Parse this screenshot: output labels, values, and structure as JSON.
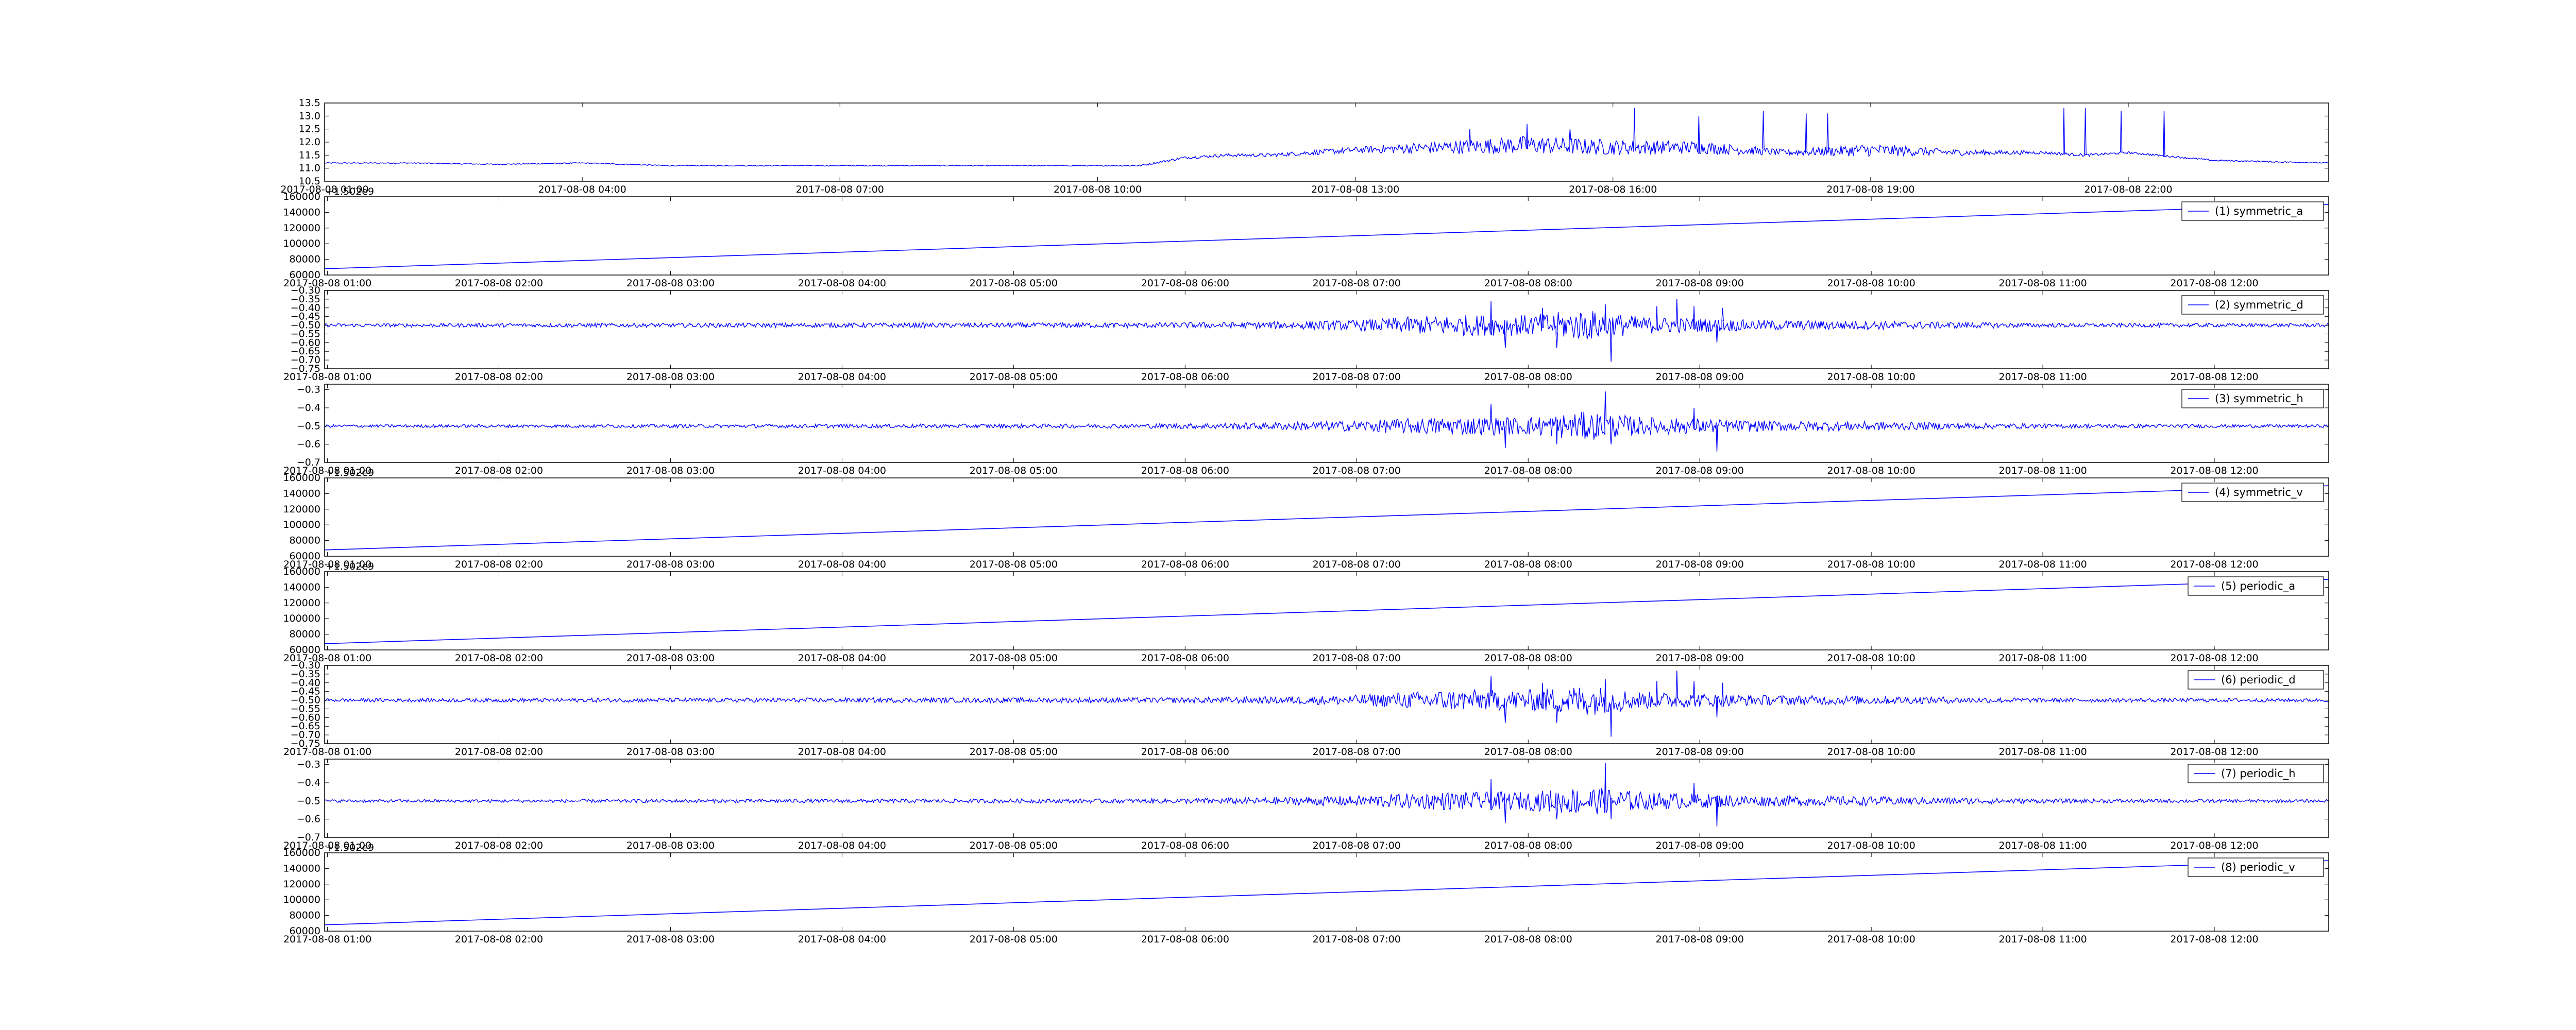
{
  "figure": {
    "background": "#ffffff",
    "line_color": "#0000ff"
  },
  "chart_data": [
    {
      "id": "raw",
      "type": "line",
      "legend": "",
      "offset_text": "",
      "yticks": [
        "10.5",
        "11.0",
        "11.5",
        "12.0",
        "12.5",
        "13.0",
        "13.5"
      ],
      "ylim": [
        10.5,
        13.5
      ],
      "xticks": [
        "2017-08-08 01:00",
        "2017-08-08 04:00",
        "2017-08-08 07:00",
        "2017-08-08 10:00",
        "2017-08-08 13:00",
        "2017-08-08 16:00",
        "2017-08-08 19:00",
        "2017-08-08 22:00"
      ],
      "xlim": [
        "2017-08-08 01:00",
        "2017-08-09 00:20"
      ],
      "series": [
        {
          "kind": "timeseries",
          "x": [
            "2017-08-08 01:00",
            "2017-08-08 02:00",
            "2017-08-08 03:00",
            "2017-08-08 04:00",
            "2017-08-08 05:00",
            "2017-08-08 06:00",
            "2017-08-08 07:00",
            "2017-08-08 08:00",
            "2017-08-08 09:00",
            "2017-08-08 10:00",
            "2017-08-08 10:30",
            "2017-08-08 11:00",
            "2017-08-08 11:30",
            "2017-08-08 12:00",
            "2017-08-08 13:00",
            "2017-08-08 14:00",
            "2017-08-08 15:00",
            "2017-08-08 16:00",
            "2017-08-08 17:00",
            "2017-08-08 18:00",
            "2017-08-08 19:00",
            "2017-08-08 20:00",
            "2017-08-08 21:00",
            "2017-08-08 21:30",
            "2017-08-08 22:00",
            "2017-08-08 23:00",
            "2017-08-09 00:20"
          ],
          "y": [
            11.2,
            11.2,
            11.15,
            11.2,
            11.1,
            11.1,
            11.1,
            11.1,
            11.1,
            11.1,
            11.1,
            11.4,
            11.5,
            11.5,
            11.7,
            11.8,
            11.9,
            11.8,
            11.8,
            11.6,
            11.7,
            11.6,
            11.6,
            11.5,
            11.6,
            11.3,
            11.2
          ],
          "noise_amp": [
            0.02,
            0.02,
            0.02,
            0.02,
            0.02,
            0.02,
            0.02,
            0.02,
            0.02,
            0.02,
            0.03,
            0.05,
            0.06,
            0.07,
            0.12,
            0.25,
            0.35,
            0.3,
            0.25,
            0.12,
            0.25,
            0.12,
            0.06,
            0.05,
            0.04,
            0.03,
            0.02
          ],
          "spikes": [
            [
              "2017-08-08 14:20",
              12.5
            ],
            [
              "2017-08-08 15:00",
              12.7
            ],
            [
              "2017-08-08 15:30",
              12.5
            ],
            [
              "2017-08-08 16:15",
              13.3
            ],
            [
              "2017-08-08 17:00",
              13.0
            ],
            [
              "2017-08-08 17:45",
              13.2
            ],
            [
              "2017-08-08 18:15",
              13.1
            ],
            [
              "2017-08-08 18:30",
              13.1
            ],
            [
              "2017-08-08 21:15",
              13.3
            ],
            [
              "2017-08-08 21:30",
              13.3
            ],
            [
              "2017-08-08 21:55",
              13.2
            ],
            [
              "2017-08-08 22:25",
              13.2
            ]
          ]
        }
      ]
    },
    {
      "id": "symmetric_a",
      "type": "line",
      "legend": "(1) symmetric_a",
      "offset_text": "+1.502e9",
      "yticks": [
        "60000",
        "80000",
        "100000",
        "120000",
        "140000",
        "160000"
      ],
      "ylim": [
        60000,
        160000
      ],
      "xticks": [
        "2017-08-08 01:00",
        "2017-08-08 02:00",
        "2017-08-08 03:00",
        "2017-08-08 04:00",
        "2017-08-08 05:00",
        "2017-08-08 06:00",
        "2017-08-08 07:00",
        "2017-08-08 08:00",
        "2017-08-08 09:00",
        "2017-08-08 10:00",
        "2017-08-08 11:00",
        "2017-08-08 12:00"
      ],
      "xlim": [
        "2017-08-08 00:59",
        "2017-08-08 12:40"
      ],
      "series": [
        {
          "kind": "linear",
          "x": [
            "2017-08-08 00:59",
            "2017-08-08 12:40"
          ],
          "y": [
            68000,
            150000
          ]
        }
      ]
    },
    {
      "id": "symmetric_d",
      "type": "line",
      "legend": "(2) symmetric_d",
      "offset_text": "",
      "yticks": [
        "−0.75",
        "−0.70",
        "−0.65",
        "−0.60",
        "−0.55",
        "−0.50",
        "−0.45",
        "−0.40",
        "−0.35",
        "−0.30"
      ],
      "ylim": [
        -0.75,
        -0.3
      ],
      "xticks": [
        "2017-08-08 01:00",
        "2017-08-08 02:00",
        "2017-08-08 03:00",
        "2017-08-08 04:00",
        "2017-08-08 05:00",
        "2017-08-08 06:00",
        "2017-08-08 07:00",
        "2017-08-08 08:00",
        "2017-08-08 09:00",
        "2017-08-08 10:00",
        "2017-08-08 11:00",
        "2017-08-08 12:00"
      ],
      "xlim": [
        "2017-08-08 00:59",
        "2017-08-08 12:40"
      ],
      "series": [
        {
          "kind": "noise",
          "base": -0.5,
          "x": [
            "2017-08-08 00:59",
            "2017-08-08 05:45",
            "2017-08-08 06:30",
            "2017-08-08 07:00",
            "2017-08-08 07:30",
            "2017-08-08 08:00",
            "2017-08-08 08:20",
            "2017-08-08 08:40",
            "2017-08-08 09:00",
            "2017-08-08 09:20",
            "2017-08-08 10:00",
            "2017-08-08 11:00",
            "2017-08-08 12:40"
          ],
          "amp": [
            0.01,
            0.015,
            0.02,
            0.03,
            0.06,
            0.06,
            0.09,
            0.05,
            0.04,
            0.03,
            0.025,
            0.012,
            0.01
          ],
          "spikes": [
            [
              "2017-08-08 07:47",
              -0.36
            ],
            [
              "2017-08-08 07:52",
              -0.63
            ],
            [
              "2017-08-08 08:05",
              -0.4
            ],
            [
              "2017-08-08 08:10",
              -0.63
            ],
            [
              "2017-08-08 08:27",
              -0.38
            ],
            [
              "2017-08-08 08:29",
              -0.71
            ],
            [
              "2017-08-08 08:45",
              -0.39
            ],
            [
              "2017-08-08 08:52",
              -0.35
            ],
            [
              "2017-08-08 08:58",
              -0.39
            ],
            [
              "2017-08-08 09:06",
              -0.6
            ],
            [
              "2017-08-08 09:08",
              -0.4
            ]
          ]
        }
      ]
    },
    {
      "id": "symmetric_h",
      "type": "line",
      "legend": "(3) symmetric_h",
      "offset_text": "",
      "yticks": [
        "−0.7",
        "−0.6",
        "−0.5",
        "−0.4",
        "−0.3"
      ],
      "ylim": [
        -0.7,
        -0.27
      ],
      "xticks": [
        "2017-08-08 01:00",
        "2017-08-08 02:00",
        "2017-08-08 03:00",
        "2017-08-08 04:00",
        "2017-08-08 05:00",
        "2017-08-08 06:00",
        "2017-08-08 07:00",
        "2017-08-08 08:00",
        "2017-08-08 09:00",
        "2017-08-08 10:00",
        "2017-08-08 11:00",
        "2017-08-08 12:00"
      ],
      "xlim": [
        "2017-08-08 00:59",
        "2017-08-08 12:40"
      ],
      "series": [
        {
          "kind": "noise",
          "base": -0.5,
          "x": [
            "2017-08-08 00:59",
            "2017-08-08 05:45",
            "2017-08-08 06:30",
            "2017-08-08 07:00",
            "2017-08-08 07:30",
            "2017-08-08 08:00",
            "2017-08-08 08:20",
            "2017-08-08 08:40",
            "2017-08-08 09:00",
            "2017-08-08 09:20",
            "2017-08-08 10:00",
            "2017-08-08 11:00",
            "2017-08-08 12:40"
          ],
          "amp": [
            0.008,
            0.012,
            0.02,
            0.03,
            0.05,
            0.05,
            0.08,
            0.05,
            0.04,
            0.03,
            0.025,
            0.012,
            0.008
          ],
          "spikes": [
            [
              "2017-08-08 07:47",
              -0.38
            ],
            [
              "2017-08-08 07:52",
              -0.62
            ],
            [
              "2017-08-08 08:10",
              -0.6
            ],
            [
              "2017-08-08 08:27",
              -0.31
            ],
            [
              "2017-08-08 08:29",
              -0.6
            ],
            [
              "2017-08-08 08:58",
              -0.4
            ],
            [
              "2017-08-08 09:06",
              -0.64
            ]
          ]
        }
      ]
    },
    {
      "id": "symmetric_v",
      "type": "line",
      "legend": "(4) symmetric_v",
      "offset_text": "+1.502e9",
      "yticks": [
        "60000",
        "80000",
        "100000",
        "120000",
        "140000",
        "160000"
      ],
      "ylim": [
        60000,
        160000
      ],
      "xticks": [
        "2017-08-08 01:00",
        "2017-08-08 02:00",
        "2017-08-08 03:00",
        "2017-08-08 04:00",
        "2017-08-08 05:00",
        "2017-08-08 06:00",
        "2017-08-08 07:00",
        "2017-08-08 08:00",
        "2017-08-08 09:00",
        "2017-08-08 10:00",
        "2017-08-08 11:00",
        "2017-08-08 12:00"
      ],
      "xlim": [
        "2017-08-08 00:59",
        "2017-08-08 12:40"
      ],
      "series": [
        {
          "kind": "linear",
          "x": [
            "2017-08-08 00:59",
            "2017-08-08 12:40"
          ],
          "y": [
            68000,
            150000
          ]
        }
      ]
    },
    {
      "id": "periodic_a",
      "type": "line",
      "legend": "(5) periodic_a",
      "offset_text": "+1.502e9",
      "yticks": [
        "60000",
        "80000",
        "100000",
        "120000",
        "140000",
        "160000"
      ],
      "ylim": [
        60000,
        160000
      ],
      "xticks": [
        "2017-08-08 01:00",
        "2017-08-08 02:00",
        "2017-08-08 03:00",
        "2017-08-08 04:00",
        "2017-08-08 05:00",
        "2017-08-08 06:00",
        "2017-08-08 07:00",
        "2017-08-08 08:00",
        "2017-08-08 09:00",
        "2017-08-08 10:00",
        "2017-08-08 11:00",
        "2017-08-08 12:00"
      ],
      "xlim": [
        "2017-08-08 00:59",
        "2017-08-08 12:40"
      ],
      "series": [
        {
          "kind": "linear",
          "x": [
            "2017-08-08 00:59",
            "2017-08-08 12:40"
          ],
          "y": [
            68000,
            150000
          ]
        }
      ]
    },
    {
      "id": "periodic_d",
      "type": "line",
      "legend": "(6) periodic_d",
      "offset_text": "",
      "yticks": [
        "−0.75",
        "−0.70",
        "−0.65",
        "−0.60",
        "−0.55",
        "−0.50",
        "−0.45",
        "−0.40",
        "−0.35",
        "−0.30"
      ],
      "ylim": [
        -0.75,
        -0.3
      ],
      "xticks": [
        "2017-08-08 01:00",
        "2017-08-08 02:00",
        "2017-08-08 03:00",
        "2017-08-08 04:00",
        "2017-08-08 05:00",
        "2017-08-08 06:00",
        "2017-08-08 07:00",
        "2017-08-08 08:00",
        "2017-08-08 09:00",
        "2017-08-08 10:00",
        "2017-08-08 11:00",
        "2017-08-08 12:00"
      ],
      "xlim": [
        "2017-08-08 00:59",
        "2017-08-08 12:40"
      ],
      "series": [
        {
          "kind": "noise",
          "base": -0.5,
          "x": [
            "2017-08-08 00:59",
            "2017-08-08 05:45",
            "2017-08-08 06:30",
            "2017-08-08 07:00",
            "2017-08-08 07:30",
            "2017-08-08 08:00",
            "2017-08-08 08:20",
            "2017-08-08 08:40",
            "2017-08-08 09:00",
            "2017-08-08 09:20",
            "2017-08-08 10:00",
            "2017-08-08 11:00",
            "2017-08-08 12:40"
          ],
          "amp": [
            0.01,
            0.015,
            0.02,
            0.03,
            0.06,
            0.06,
            0.09,
            0.05,
            0.04,
            0.03,
            0.025,
            0.012,
            0.01
          ],
          "spikes": [
            [
              "2017-08-08 07:47",
              -0.36
            ],
            [
              "2017-08-08 07:52",
              -0.63
            ],
            [
              "2017-08-08 08:05",
              -0.4
            ],
            [
              "2017-08-08 08:10",
              -0.63
            ],
            [
              "2017-08-08 08:27",
              -0.38
            ],
            [
              "2017-08-08 08:29",
              -0.71
            ],
            [
              "2017-08-08 08:45",
              -0.39
            ],
            [
              "2017-08-08 08:52",
              -0.33
            ],
            [
              "2017-08-08 08:58",
              -0.39
            ],
            [
              "2017-08-08 09:06",
              -0.6
            ],
            [
              "2017-08-08 09:08",
              -0.4
            ]
          ]
        }
      ]
    },
    {
      "id": "periodic_h",
      "type": "line",
      "legend": "(7) periodic_h",
      "offset_text": "",
      "yticks": [
        "−0.7",
        "−0.6",
        "−0.5",
        "−0.4",
        "−0.3"
      ],
      "ylim": [
        -0.7,
        -0.27
      ],
      "xticks": [
        "2017-08-08 01:00",
        "2017-08-08 02:00",
        "2017-08-08 03:00",
        "2017-08-08 04:00",
        "2017-08-08 05:00",
        "2017-08-08 06:00",
        "2017-08-08 07:00",
        "2017-08-08 08:00",
        "2017-08-08 09:00",
        "2017-08-08 10:00",
        "2017-08-08 11:00",
        "2017-08-08 12:00"
      ],
      "xlim": [
        "2017-08-08 00:59",
        "2017-08-08 12:40"
      ],
      "series": [
        {
          "kind": "noise",
          "base": -0.5,
          "x": [
            "2017-08-08 00:59",
            "2017-08-08 05:45",
            "2017-08-08 06:30",
            "2017-08-08 07:00",
            "2017-08-08 07:30",
            "2017-08-08 08:00",
            "2017-08-08 08:20",
            "2017-08-08 08:40",
            "2017-08-08 09:00",
            "2017-08-08 09:20",
            "2017-08-08 10:00",
            "2017-08-08 11:00",
            "2017-08-08 12:40"
          ],
          "amp": [
            0.008,
            0.012,
            0.02,
            0.03,
            0.05,
            0.05,
            0.08,
            0.05,
            0.04,
            0.03,
            0.025,
            0.012,
            0.008
          ],
          "spikes": [
            [
              "2017-08-08 07:47",
              -0.38
            ],
            [
              "2017-08-08 07:52",
              -0.62
            ],
            [
              "2017-08-08 08:10",
              -0.6
            ],
            [
              "2017-08-08 08:27",
              -0.29
            ],
            [
              "2017-08-08 08:29",
              -0.6
            ],
            [
              "2017-08-08 08:58",
              -0.4
            ],
            [
              "2017-08-08 09:06",
              -0.64
            ]
          ]
        }
      ]
    },
    {
      "id": "periodic_v",
      "type": "line",
      "legend": "(8) periodic_v",
      "offset_text": "+1.502e9",
      "yticks": [
        "60000",
        "80000",
        "100000",
        "120000",
        "140000",
        "160000"
      ],
      "ylim": [
        60000,
        160000
      ],
      "xticks": [
        "2017-08-08 01:00",
        "2017-08-08 02:00",
        "2017-08-08 03:00",
        "2017-08-08 04:00",
        "2017-08-08 05:00",
        "2017-08-08 06:00",
        "2017-08-08 07:00",
        "2017-08-08 08:00",
        "2017-08-08 09:00",
        "2017-08-08 10:00",
        "2017-08-08 11:00",
        "2017-08-08 12:00"
      ],
      "xlim": [
        "2017-08-08 00:59",
        "2017-08-08 12:40"
      ],
      "series": [
        {
          "kind": "linear",
          "x": [
            "2017-08-08 00:59",
            "2017-08-08 12:40"
          ],
          "y": [
            68000,
            150000
          ]
        }
      ]
    }
  ]
}
